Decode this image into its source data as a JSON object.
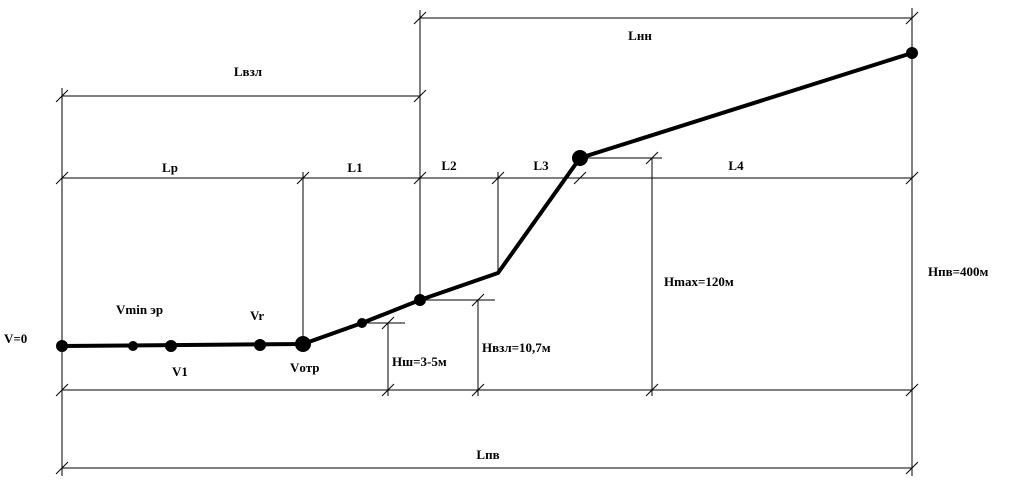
{
  "labels": {
    "l_vzl": "Lвзл",
    "l_nn": "Lнн",
    "l_r": "Lр",
    "l_1": "L1",
    "l_2": "L2",
    "l_3": "L3",
    "l_4": "L4",
    "l_pv": "Lпв"
  },
  "speeds": {
    "v0": "V=0",
    "vmin": "Vmin эр",
    "vr": "Vr",
    "v1": "V1",
    "votr": "Vотр"
  },
  "heights": {
    "h_sh": "Hш=3-5м",
    "h_vzl": "Hвзл=10,7м",
    "h_max": "Hmax=120м",
    "h_pv": "Hпв=400м"
  }
}
